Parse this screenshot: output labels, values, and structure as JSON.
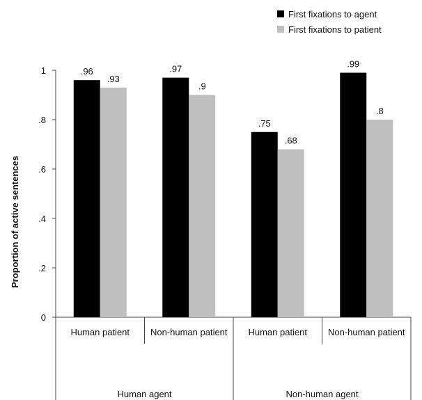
{
  "chart_data": {
    "type": "bar",
    "ylabel": "Proportion of active sentences",
    "xlabel": "",
    "ylim": [
      0,
      1
    ],
    "yticks": [
      0,
      0.2,
      0.4,
      0.6,
      0.8,
      1
    ],
    "ytick_labels": [
      "0",
      ".2",
      ".4",
      ".6",
      ".8",
      "1"
    ],
    "categories": [
      "Human patient",
      "Non-human patient",
      "Human patient",
      "Non-human patient"
    ],
    "groups": [
      {
        "label": "Human agent",
        "categories": [
          0,
          1
        ]
      },
      {
        "label": "Non-human agent",
        "categories": [
          2,
          3
        ]
      }
    ],
    "series": [
      {
        "name": "First fixations to agent",
        "color": "#000000",
        "values": [
          0.96,
          0.97,
          0.75,
          0.99
        ],
        "labels": [
          ".96",
          ".97",
          ".75",
          ".99"
        ]
      },
      {
        "name": "First fixations to patient",
        "color": "#bfbfbf",
        "values": [
          0.93,
          0.9,
          0.68,
          0.8
        ],
        "labels": [
          ".93",
          ".9",
          ".68",
          ".8"
        ]
      }
    ],
    "legend_position": "top-right",
    "grid": false
  }
}
